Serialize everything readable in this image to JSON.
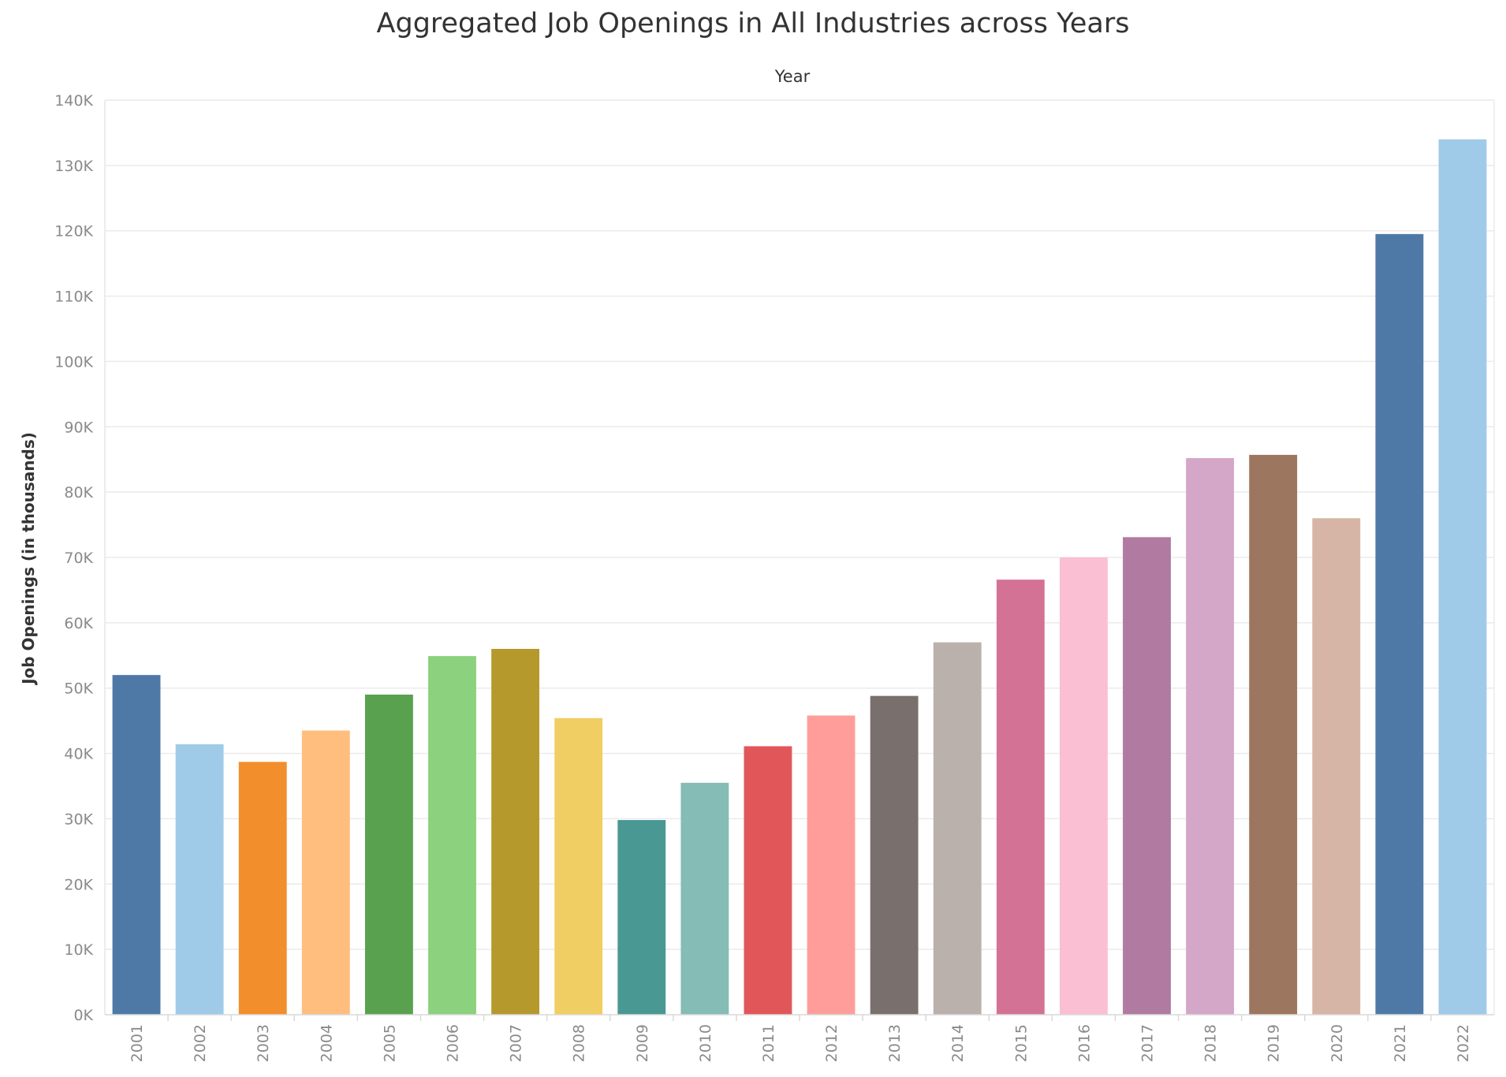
{
  "chart_data": {
    "type": "bar",
    "title": "Aggregated Job Openings in All Industries across Years",
    "x_header": "Year",
    "ylabel": "Job Openings (in thousands)",
    "ylim": [
      0,
      140000
    ],
    "y_ticks": [
      0,
      10000,
      20000,
      30000,
      40000,
      50000,
      60000,
      70000,
      80000,
      90000,
      100000,
      110000,
      120000,
      130000,
      140000
    ],
    "y_tick_labels": [
      "0K",
      "10K",
      "20K",
      "30K",
      "40K",
      "50K",
      "60K",
      "70K",
      "80K",
      "90K",
      "100K",
      "110K",
      "120K",
      "130K",
      "140K"
    ],
    "grid": true,
    "categories": [
      "2001",
      "2002",
      "2003",
      "2004",
      "2005",
      "2006",
      "2007",
      "2008",
      "2009",
      "2010",
      "2011",
      "2012",
      "2013",
      "2014",
      "2015",
      "2016",
      "2017",
      "2018",
      "2019",
      "2020",
      "2021",
      "2022"
    ],
    "values": [
      52000,
      41400,
      38700,
      43500,
      49000,
      54900,
      56000,
      45400,
      29800,
      35500,
      41100,
      45800,
      48800,
      57000,
      66600,
      70000,
      73100,
      85200,
      85700,
      76000,
      119500,
      134000
    ],
    "colors": [
      "#4e79a7",
      "#a0cbe8",
      "#f28e2b",
      "#ffbe7d",
      "#59a14f",
      "#8cd17d",
      "#b6992d",
      "#f1ce63",
      "#499894",
      "#86bcb6",
      "#e15759",
      "#ff9d9a",
      "#79706e",
      "#bab0ac",
      "#d37295",
      "#fabfd2",
      "#b07aa1",
      "#d4a6c8",
      "#9d7660",
      "#d7b5a6",
      "#4e79a7",
      "#a0cbe8"
    ]
  }
}
